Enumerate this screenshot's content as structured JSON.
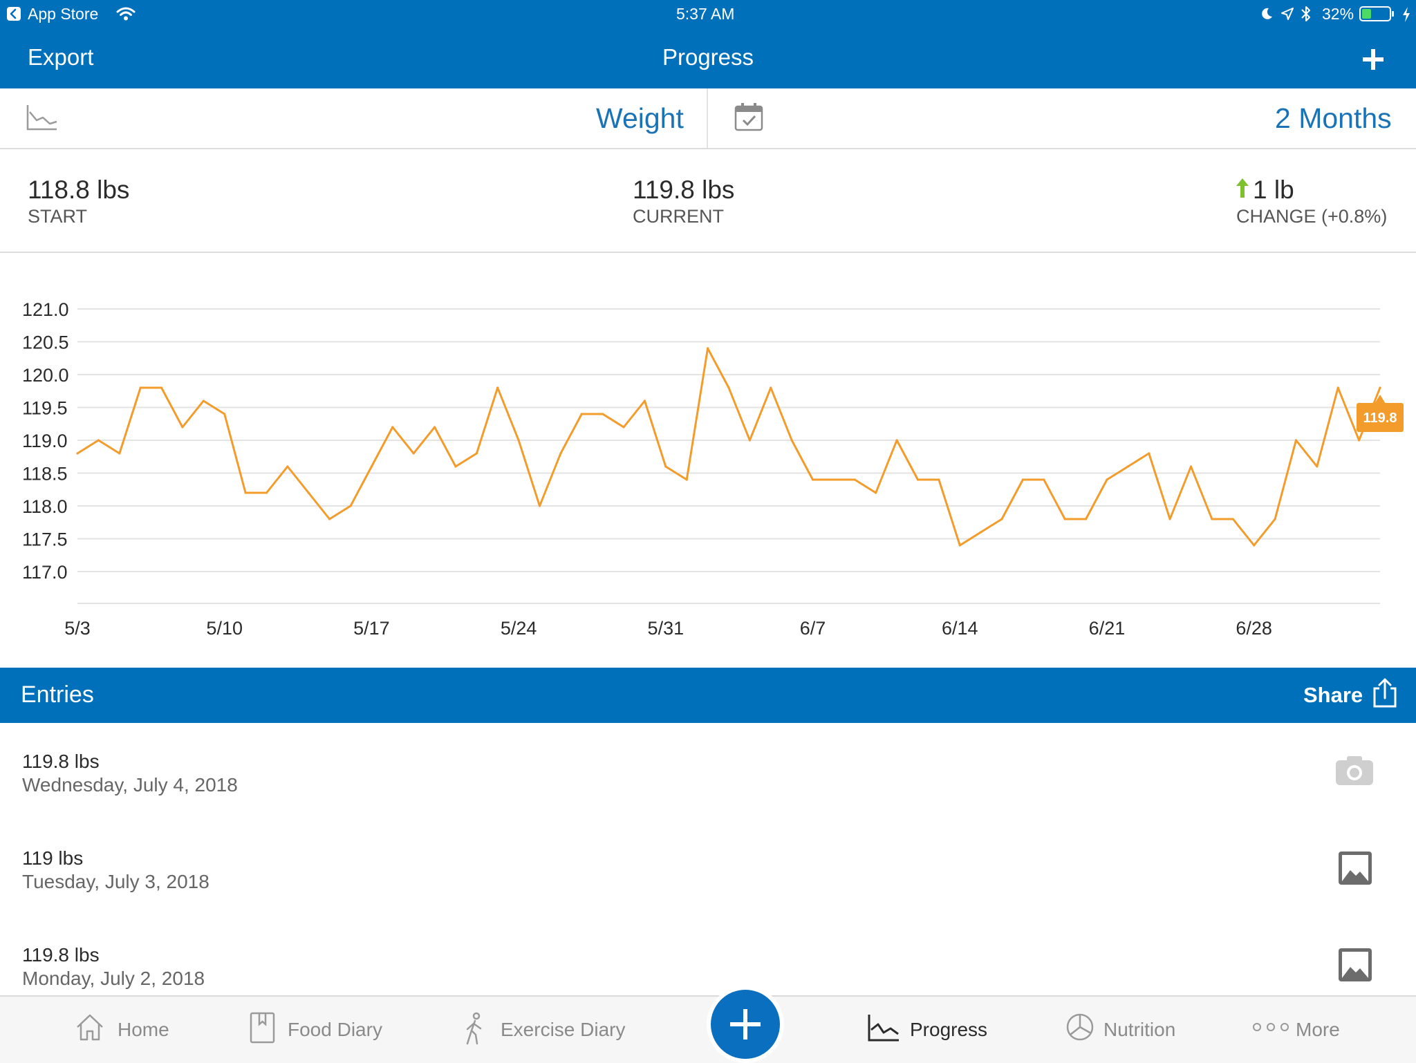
{
  "status_bar": {
    "back_app": "App Store",
    "time": "5:37 AM",
    "battery": "32%"
  },
  "nav": {
    "export_label": "Export",
    "title": "Progress",
    "add_icon": "plus-icon"
  },
  "selector": {
    "metric": "Weight",
    "range": "2 Months"
  },
  "summary": {
    "start_value": "118.8 lbs",
    "start_label": "START",
    "current_value": "119.8 lbs",
    "current_label": "CURRENT",
    "change_value": "1 lb",
    "change_label": "CHANGE (+0.8%)",
    "change_color": "#7dc12e"
  },
  "chart_data": {
    "type": "line",
    "title": "",
    "xlabel": "",
    "ylabel": "",
    "ylim": [
      116.5,
      121.0
    ],
    "yticks": [
      "121.0",
      "120.5",
      "120.0",
      "119.5",
      "119.0",
      "118.5",
      "118.0",
      "117.5",
      "117.0"
    ],
    "xticks": [
      "5/3",
      "5/10",
      "5/17",
      "5/24",
      "5/31",
      "6/7",
      "6/14",
      "6/21",
      "6/28"
    ],
    "grid": true,
    "line_color": "#f39c2b",
    "x": [
      "5/3",
      "5/4",
      "5/5",
      "5/6",
      "5/7",
      "5/8",
      "5/9",
      "5/10",
      "5/11",
      "5/12",
      "5/13",
      "5/14",
      "5/15",
      "5/16",
      "5/17",
      "5/18",
      "5/19",
      "5/20",
      "5/21",
      "5/22",
      "5/23",
      "5/24",
      "5/25",
      "5/26",
      "5/27",
      "5/28",
      "5/29",
      "5/30",
      "5/31",
      "6/1",
      "6/2",
      "6/3",
      "6/4",
      "6/5",
      "6/6",
      "6/7",
      "6/8",
      "6/9",
      "6/10",
      "6/11",
      "6/12",
      "6/13",
      "6/14",
      "6/15",
      "6/16",
      "6/17",
      "6/18",
      "6/19",
      "6/20",
      "6/21",
      "6/22",
      "6/23",
      "6/24",
      "6/25",
      "6/26",
      "6/27",
      "6/28",
      "6/29",
      "6/30",
      "7/1",
      "7/2",
      "7/3",
      "7/4"
    ],
    "series": [
      {
        "values": [
          118.8,
          119.0,
          118.8,
          119.8,
          119.8,
          119.2,
          119.6,
          119.4,
          118.2,
          118.2,
          118.6,
          118.2,
          117.8,
          118.0,
          118.6,
          119.2,
          118.8,
          119.2,
          118.6,
          118.8,
          119.8,
          119.0,
          118.0,
          118.8,
          119.4,
          119.4,
          119.2,
          119.6,
          118.6,
          118.4,
          120.4,
          119.8,
          119.0,
          119.8,
          119.0,
          118.4,
          118.4,
          118.4,
          118.2,
          119.0,
          118.4,
          118.4,
          117.4,
          117.6,
          117.8,
          118.4,
          118.4,
          117.8,
          117.8,
          118.4,
          118.6,
          118.8,
          117.8,
          118.6,
          117.8,
          117.8,
          117.4,
          117.8,
          119.0,
          118.6,
          119.8,
          119.0,
          119.8
        ]
      }
    ],
    "callout": "119.8"
  },
  "entries": {
    "title": "Entries",
    "share_label": "Share",
    "items": [
      {
        "weight": "119.8 lbs",
        "date": "Wednesday, July 4, 2018",
        "icon": "camera-icon"
      },
      {
        "weight": "119 lbs",
        "date": "Tuesday, July 3, 2018",
        "icon": "photo-icon"
      },
      {
        "weight": "119.8 lbs",
        "date": "Monday, July 2, 2018",
        "icon": "photo-icon"
      }
    ]
  },
  "tabbar": {
    "home": "Home",
    "food_diary": "Food Diary",
    "exercise_diary": "Exercise Diary",
    "progress": "Progress",
    "nutrition": "Nutrition",
    "more": "More",
    "active_color": "#0070bb"
  }
}
